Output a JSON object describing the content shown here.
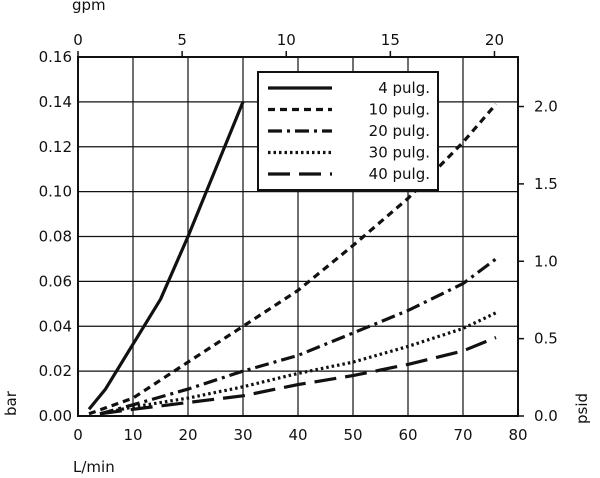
{
  "chart_data": {
    "type": "line",
    "axes": {
      "bottom": {
        "label": "L/min",
        "ticks": [
          "0",
          "10",
          "20",
          "30",
          "40",
          "50",
          "60",
          "70",
          "80"
        ],
        "range": [
          0,
          80
        ]
      },
      "top": {
        "label": "gpm",
        "ticks": [
          "0",
          "5",
          "10",
          "15",
          "20"
        ],
        "range": [
          0,
          21.13
        ]
      },
      "left": {
        "label": "bar",
        "ticks": [
          "0.00",
          "0.02",
          "0.04",
          "0.06",
          "0.08",
          "0.10",
          "0.12",
          "0.14",
          "0.16"
        ],
        "range": [
          0,
          0.16
        ]
      },
      "right": {
        "label": "psid",
        "ticks": [
          "0.0",
          "0.5",
          "1.0",
          "1.5",
          "2.0"
        ],
        "range": [
          0,
          2.32
        ]
      }
    },
    "grid": true,
    "legend_position": "top-right",
    "series": [
      {
        "name": "4 pulg.",
        "style": "solid",
        "x": [
          2,
          5,
          10,
          15,
          20,
          25,
          30
        ],
        "y": [
          0.003,
          0.012,
          0.032,
          0.052,
          0.08,
          0.11,
          0.14
        ]
      },
      {
        "name": "10 pulg.",
        "style": "short-dash",
        "x": [
          2,
          10,
          20,
          30,
          40,
          50,
          60,
          70,
          76
        ],
        "y": [
          0.001,
          0.008,
          0.024,
          0.04,
          0.056,
          0.076,
          0.097,
          0.122,
          0.139
        ]
      },
      {
        "name": "20 pulg.",
        "style": "dash-dot",
        "x": [
          4,
          10,
          20,
          30,
          40,
          50,
          60,
          70,
          76
        ],
        "y": [
          0.001,
          0.005,
          0.012,
          0.02,
          0.027,
          0.037,
          0.047,
          0.059,
          0.07
        ]
      },
      {
        "name": "30 pulg.",
        "style": "dotted",
        "x": [
          4,
          10,
          20,
          30,
          40,
          50,
          60,
          70,
          76
        ],
        "y": [
          0.001,
          0.004,
          0.008,
          0.013,
          0.019,
          0.024,
          0.031,
          0.039,
          0.046
        ]
      },
      {
        "name": "40 pulg.",
        "style": "long-dash",
        "x": [
          4,
          10,
          20,
          30,
          40,
          50,
          60,
          70,
          76
        ],
        "y": [
          0.001,
          0.003,
          0.006,
          0.009,
          0.014,
          0.018,
          0.023,
          0.029,
          0.035
        ]
      }
    ]
  }
}
